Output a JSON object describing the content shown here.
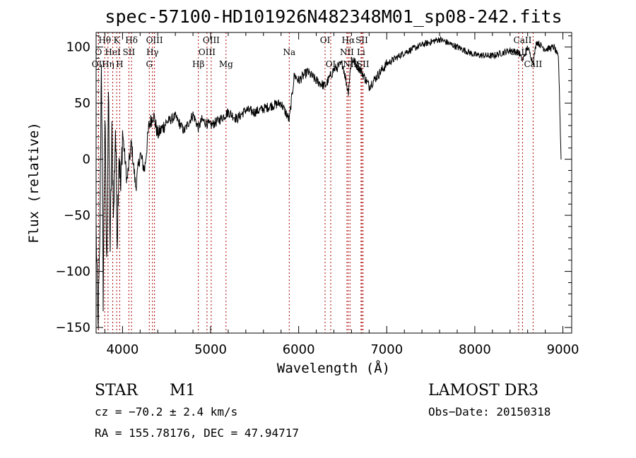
{
  "chart_data": {
    "type": "line",
    "title": "spec-57100-HD101926N482348M01_sp08-242.fits",
    "xlabel": "Wavelength (Å)",
    "ylabel": "Flux (relative)",
    "xlim": [
      3700,
      9100
    ],
    "ylim": [
      -155,
      113
    ],
    "xticks": [
      4000,
      5000,
      6000,
      7000,
      8000,
      9000
    ],
    "yticks": [
      -150,
      -100,
      -50,
      0,
      50,
      100
    ],
    "colors": {
      "spectrum": "#000000",
      "line_markers": "#aa0000",
      "axes": "#000000"
    },
    "spectrum": {
      "name": "flux",
      "anchors": [
        [
          3700,
          -60
        ],
        [
          3720,
          -150
        ],
        [
          3740,
          -90
        ],
        [
          3760,
          95
        ],
        [
          3780,
          -120
        ],
        [
          3800,
          40
        ],
        [
          3820,
          -100
        ],
        [
          3840,
          60
        ],
        [
          3860,
          -80
        ],
        [
          3880,
          20
        ],
        [
          3900,
          -50
        ],
        [
          3920,
          30
        ],
        [
          3940,
          -70
        ],
        [
          3960,
          10
        ],
        [
          3980,
          -30
        ],
        [
          4000,
          25
        ],
        [
          4050,
          -20
        ],
        [
          4100,
          15
        ],
        [
          4150,
          -25
        ],
        [
          4200,
          5
        ],
        [
          4250,
          -10
        ],
        [
          4300,
          30
        ],
        [
          4350,
          40
        ],
        [
          4400,
          22
        ],
        [
          4500,
          33
        ],
        [
          4600,
          38
        ],
        [
          4700,
          25
        ],
        [
          4800,
          40
        ],
        [
          4861,
          28
        ],
        [
          4900,
          35
        ],
        [
          5000,
          30
        ],
        [
          5100,
          35
        ],
        [
          5200,
          42
        ],
        [
          5300,
          36
        ],
        [
          5400,
          44
        ],
        [
          5500,
          42
        ],
        [
          5600,
          45
        ],
        [
          5700,
          48
        ],
        [
          5800,
          50
        ],
        [
          5893,
          35
        ],
        [
          5950,
          75
        ],
        [
          6000,
          70
        ],
        [
          6100,
          78
        ],
        [
          6200,
          70
        ],
        [
          6300,
          65
        ],
        [
          6400,
          80
        ],
        [
          6500,
          85
        ],
        [
          6563,
          60
        ],
        [
          6600,
          90
        ],
        [
          6700,
          80
        ],
        [
          6800,
          65
        ],
        [
          6900,
          75
        ],
        [
          7000,
          85
        ],
        [
          7200,
          95
        ],
        [
          7400,
          102
        ],
        [
          7600,
          107
        ],
        [
          7800,
          100
        ],
        [
          8000,
          93
        ],
        [
          8200,
          92
        ],
        [
          8400,
          97
        ],
        [
          8500,
          95
        ],
        [
          8542,
          88
        ],
        [
          8600,
          100
        ],
        [
          8662,
          86
        ],
        [
          8700,
          105
        ],
        [
          8800,
          98
        ],
        [
          8900,
          100
        ],
        [
          8950,
          90
        ],
        [
          8980,
          0
        ]
      ]
    },
    "emission_lines": [
      {
        "name": "Hθ",
        "wavelength": 3798,
        "row": 1
      },
      {
        "name": "O",
        "wavelength": 3727,
        "row": 2
      },
      {
        "name": "OII",
        "wavelength": 3727,
        "row": 3
      },
      {
        "name": "Hη",
        "wavelength": 3835,
        "row": 3
      },
      {
        "name": "HeI",
        "wavelength": 3889,
        "row": 2
      },
      {
        "name": "K",
        "wavelength": 3934,
        "row": 1
      },
      {
        "name": "H",
        "wavelength": 3968,
        "row": 3
      },
      {
        "name": "SII",
        "wavelength": 4072,
        "row": 2
      },
      {
        "name": "Hδ",
        "wavelength": 4102,
        "row": 1
      },
      {
        "name": "G",
        "wavelength": 4304,
        "row": 3
      },
      {
        "name": "Hγ",
        "wavelength": 4340,
        "row": 2
      },
      {
        "name": "OIII",
        "wavelength": 4363,
        "row": 1
      },
      {
        "name": "Hβ",
        "wavelength": 4861,
        "row": 3
      },
      {
        "name": "OIII",
        "wavelength": 4959,
        "row": 2
      },
      {
        "name": "OIII",
        "wavelength": 5007,
        "row": 1
      },
      {
        "name": "Mg",
        "wavelength": 5175,
        "row": 3
      },
      {
        "name": "Na",
        "wavelength": 5893,
        "row": 2
      },
      {
        "name": "OI",
        "wavelength": 6300,
        "row": 1
      },
      {
        "name": "OI",
        "wavelength": 6364,
        "row": 3
      },
      {
        "name": "NII",
        "wavelength": 6548,
        "row": 2
      },
      {
        "name": "Hα",
        "wavelength": 6563,
        "row": 1
      },
      {
        "name": "NII",
        "wavelength": 6583,
        "row": 3
      },
      {
        "name": "Li",
        "wavelength": 6708,
        "row": 2
      },
      {
        "name": "SII",
        "wavelength": 6717,
        "row": 1
      },
      {
        "name": "SII",
        "wavelength": 6731,
        "row": 3
      },
      {
        "name": "CaII",
        "wavelength": 8498,
        "row": 2
      },
      {
        "name": "CaII",
        "wavelength": 8542,
        "row": 1
      },
      {
        "name": "CaII",
        "wavelength": 8662,
        "row": 3
      }
    ]
  },
  "info": {
    "object_class": "STAR",
    "subclass": "M1",
    "survey": "LAMOST DR3",
    "cz": "cz = −70.2 ± 2.4 km/s",
    "obs_date": "Obs−Date: 20150318",
    "coords": "RA = 155.78176, DEC =  47.94717"
  }
}
